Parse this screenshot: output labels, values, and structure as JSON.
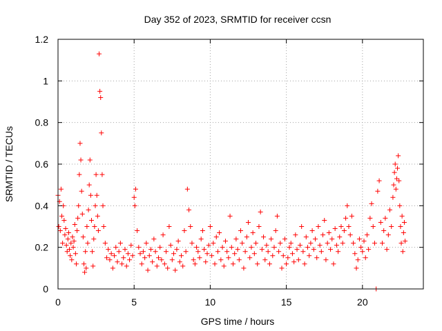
{
  "chart_data": {
    "type": "scatter",
    "title": "Day 352 of 2023, SRMTID for receiver ccsn",
    "xlabel": "GPS time / hours",
    "ylabel": "SRMTID / TECUs",
    "xlim": [
      0,
      24
    ],
    "ylim": [
      0,
      1.2
    ],
    "xticks": [
      0,
      5,
      10,
      15,
      20
    ],
    "xtick_labels": [
      "0",
      "5",
      "10",
      "15",
      "20"
    ],
    "yticks": [
      0,
      0.2,
      0.4,
      0.6,
      0.8,
      1.0,
      1.2
    ],
    "ytick_labels": [
      "0",
      "0.2",
      "0.4",
      "0.6",
      "0.8",
      "1",
      "1.2"
    ],
    "grid": true,
    "marker": "+",
    "color": "#ff0000",
    "series": [
      {
        "name": "SRMTID",
        "x": [
          0.0,
          0.05,
          0.1,
          0.15,
          0.2,
          0.25,
          0.3,
          0.35,
          0.4,
          0.45,
          0.5,
          0.55,
          0.6,
          0.65,
          0.7,
          0.75,
          0.8,
          0.85,
          0.9,
          0.95,
          1.0,
          1.05,
          1.1,
          1.15,
          1.2,
          1.25,
          1.3,
          1.35,
          1.4,
          1.45,
          1.5,
          1.55,
          1.6,
          1.65,
          1.7,
          1.75,
          1.8,
          1.85,
          1.9,
          1.95,
          2.0,
          2.05,
          2.1,
          2.15,
          2.2,
          2.25,
          2.3,
          2.35,
          2.4,
          2.45,
          2.5,
          2.55,
          2.6,
          2.65,
          2.7,
          2.75,
          2.8,
          2.85,
          2.9,
          2.95,
          3.0,
          3.1,
          3.2,
          3.3,
          3.4,
          3.5,
          3.6,
          3.7,
          3.8,
          3.9,
          4.0,
          4.1,
          4.2,
          4.3,
          4.4,
          4.5,
          4.6,
          4.7,
          4.8,
          4.9,
          5.0,
          5.05,
          5.1,
          5.2,
          5.3,
          5.4,
          5.5,
          5.6,
          5.7,
          5.8,
          5.9,
          6.0,
          6.1,
          6.2,
          6.3,
          6.4,
          6.5,
          6.6,
          6.7,
          6.8,
          6.9,
          7.0,
          7.1,
          7.2,
          7.3,
          7.4,
          7.5,
          7.6,
          7.7,
          7.8,
          7.9,
          8.0,
          8.1,
          8.2,
          8.3,
          8.4,
          8.5,
          8.6,
          8.7,
          8.8,
          8.9,
          9.0,
          9.1,
          9.2,
          9.3,
          9.4,
          9.5,
          9.6,
          9.7,
          9.8,
          9.9,
          10.0,
          10.1,
          10.2,
          10.3,
          10.4,
          10.5,
          10.6,
          10.7,
          10.8,
          10.9,
          11.0,
          11.1,
          11.2,
          11.3,
          11.4,
          11.5,
          11.6,
          11.7,
          11.8,
          11.9,
          12.0,
          12.1,
          12.2,
          12.3,
          12.4,
          12.5,
          12.6,
          12.7,
          12.8,
          12.9,
          13.0,
          13.1,
          13.2,
          13.3,
          13.4,
          13.5,
          13.6,
          13.7,
          13.8,
          13.9,
          14.0,
          14.1,
          14.2,
          14.3,
          14.4,
          14.5,
          14.6,
          14.7,
          14.8,
          14.9,
          15.0,
          15.1,
          15.2,
          15.3,
          15.4,
          15.5,
          15.6,
          15.7,
          15.8,
          15.9,
          16.0,
          16.1,
          16.2,
          16.3,
          16.4,
          16.5,
          16.6,
          16.7,
          16.8,
          16.9,
          17.0,
          17.1,
          17.2,
          17.3,
          17.4,
          17.5,
          17.6,
          17.7,
          17.8,
          17.9,
          18.0,
          18.1,
          18.2,
          18.3,
          18.4,
          18.5,
          18.6,
          18.7,
          18.8,
          18.9,
          19.0,
          19.1,
          19.2,
          19.3,
          19.4,
          19.5,
          19.6,
          19.7,
          19.8,
          19.9,
          20.0,
          20.1,
          20.2,
          20.3,
          20.4,
          20.5,
          20.6,
          20.7,
          20.8,
          20.9,
          21.0,
          21.1,
          21.2,
          21.3,
          21.4,
          21.5,
          21.6,
          21.7,
          21.8,
          21.9,
          22.0,
          22.05,
          22.1,
          22.15,
          22.2,
          22.25,
          22.3,
          22.35,
          22.4,
          22.45,
          22.5,
          22.55,
          22.6,
          22.65,
          22.7,
          22.75,
          22.8
        ],
        "y": [
          0.45,
          0.3,
          0.42,
          0.28,
          0.48,
          0.35,
          0.22,
          0.4,
          0.33,
          0.26,
          0.29,
          0.21,
          0.18,
          0.24,
          0.27,
          0.19,
          0.16,
          0.22,
          0.14,
          0.25,
          0.2,
          0.23,
          0.31,
          0.17,
          0.12,
          0.28,
          0.34,
          0.4,
          0.55,
          0.7,
          0.62,
          0.47,
          0.36,
          0.25,
          0.12,
          0.08,
          0.18,
          0.1,
          0.3,
          0.22,
          0.38,
          0.5,
          0.62,
          0.45,
          0.33,
          0.18,
          0.11,
          0.24,
          0.3,
          0.4,
          0.55,
          0.45,
          0.35,
          0.28,
          1.13,
          0.95,
          0.92,
          0.75,
          0.55,
          0.4,
          0.3,
          0.22,
          0.15,
          0.19,
          0.14,
          0.17,
          0.1,
          0.16,
          0.2,
          0.13,
          0.18,
          0.22,
          0.12,
          0.15,
          0.19,
          0.11,
          0.17,
          0.14,
          0.21,
          0.16,
          0.44,
          0.4,
          0.48,
          0.28,
          0.2,
          0.17,
          0.12,
          0.18,
          0.15,
          0.22,
          0.09,
          0.16,
          0.19,
          0.13,
          0.24,
          0.18,
          0.11,
          0.15,
          0.2,
          0.14,
          0.26,
          0.12,
          0.18,
          0.1,
          0.3,
          0.21,
          0.14,
          0.17,
          0.09,
          0.19,
          0.23,
          0.13,
          0.16,
          0.11,
          0.28,
          0.18,
          0.48,
          0.38,
          0.3,
          0.22,
          0.14,
          0.12,
          0.2,
          0.18,
          0.15,
          0.24,
          0.28,
          0.19,
          0.13,
          0.17,
          0.21,
          0.3,
          0.16,
          0.22,
          0.12,
          0.25,
          0.18,
          0.27,
          0.14,
          0.2,
          0.11,
          0.23,
          0.18,
          0.15,
          0.35,
          0.2,
          0.12,
          0.17,
          0.24,
          0.19,
          0.14,
          0.28,
          0.22,
          0.1,
          0.18,
          0.25,
          0.32,
          0.15,
          0.2,
          0.27,
          0.17,
          0.22,
          0.12,
          0.3,
          0.37,
          0.19,
          0.25,
          0.14,
          0.21,
          0.18,
          0.12,
          0.24,
          0.16,
          0.2,
          0.28,
          0.35,
          0.18,
          0.22,
          0.1,
          0.16,
          0.24,
          0.12,
          0.15,
          0.2,
          0.22,
          0.17,
          0.13,
          0.26,
          0.19,
          0.14,
          0.21,
          0.3,
          0.18,
          0.12,
          0.25,
          0.2,
          0.16,
          0.22,
          0.28,
          0.19,
          0.24,
          0.15,
          0.3,
          0.21,
          0.18,
          0.26,
          0.33,
          0.14,
          0.22,
          0.27,
          0.19,
          0.24,
          0.12,
          0.29,
          0.21,
          0.18,
          0.25,
          0.3,
          0.22,
          0.28,
          0.34,
          0.4,
          0.3,
          0.26,
          0.35,
          0.22,
          0.17,
          0.1,
          0.14,
          0.24,
          0.2,
          0.18,
          0.23,
          0.15,
          0.26,
          0.19,
          0.34,
          0.41,
          0.3,
          0.22,
          0.0,
          0.47,
          0.52,
          0.32,
          0.22,
          0.28,
          0.34,
          0.19,
          0.26,
          0.38,
          0.3,
          0.44,
          0.5,
          0.56,
          0.6,
          0.48,
          0.53,
          0.58,
          0.64,
          0.52,
          0.4,
          0.3,
          0.22,
          0.35,
          0.18,
          0.27,
          0.32,
          0.23
        ]
      }
    ]
  }
}
